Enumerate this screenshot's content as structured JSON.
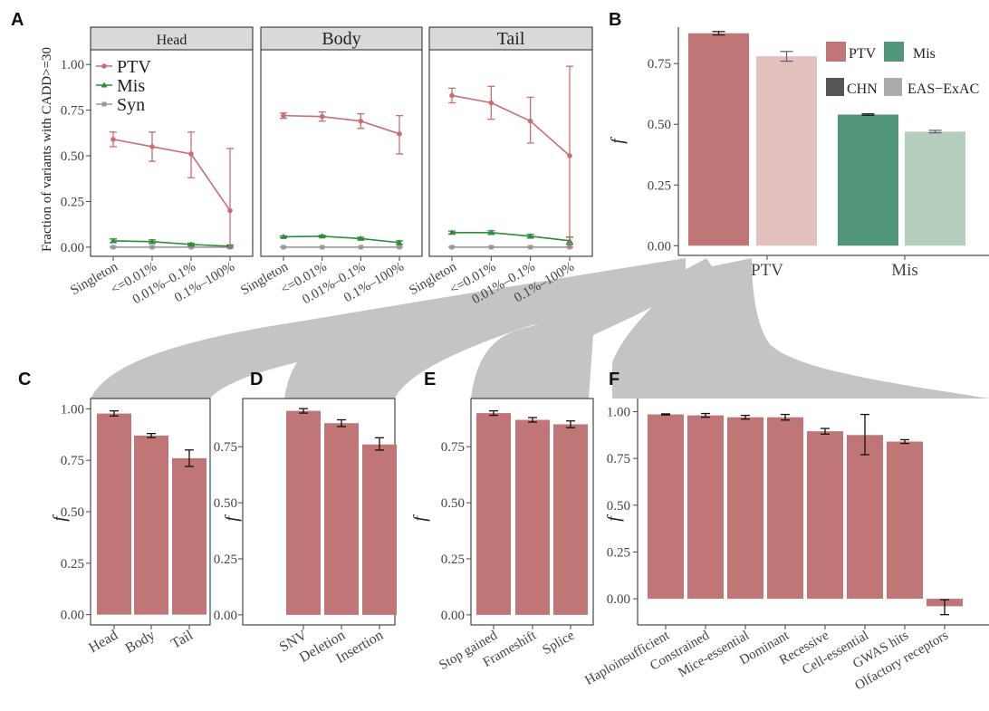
{
  "colors": {
    "ptv": "#c07677",
    "ptv_light": "#e2c0be",
    "mis": "#51967a",
    "mis_light": "#b6cebd",
    "syn": "#999999",
    "line_ptv": "#c86f73",
    "line_mis": "#2f8a3a",
    "strip": "#d9d9d9",
    "connector": "#c4c4c4",
    "legend_chn": "#555555",
    "legend_exac": "#aaaaaa"
  },
  "chart_data": [
    {
      "panel": "A",
      "type": "line",
      "ylabel": "Fraction of variants with CADD>=30",
      "ylim": [
        0,
        1.0
      ],
      "yticks": [
        "0.00",
        "0.25",
        "0.50",
        "0.75",
        "1.00"
      ],
      "categories": [
        "Singleton",
        "<=0.01%",
        "0.01%–0.1%",
        "0.1%–100%"
      ],
      "legend": [
        {
          "key": "ptv",
          "label": "PTV",
          "marker": "circle"
        },
        {
          "key": "mis",
          "label": "Mis",
          "marker": "triangle"
        },
        {
          "key": "syn",
          "label": "Syn",
          "marker": "square"
        }
      ],
      "facets": [
        {
          "name": "Head",
          "series": [
            {
              "key": "ptv",
              "values": [
                0.59,
                0.55,
                0.51,
                0.2
              ],
              "lo": [
                0.55,
                0.47,
                0.38,
                0.0
              ],
              "hi": [
                0.63,
                0.63,
                0.63,
                0.54
              ]
            },
            {
              "key": "mis",
              "values": [
                0.035,
                0.03,
                0.015,
                0.005
              ],
              "lo": [
                0.025,
                0.02,
                0.008,
                0.0
              ],
              "hi": [
                0.045,
                0.04,
                0.022,
                0.012
              ]
            },
            {
              "key": "syn",
              "values": [
                0.0,
                0.0,
                0.0,
                0.0
              ],
              "lo": [
                0.0,
                0.0,
                0.0,
                0.0
              ],
              "hi": [
                0.003,
                0.003,
                0.003,
                0.005
              ]
            }
          ]
        },
        {
          "name": "Body",
          "series": [
            {
              "key": "ptv",
              "values": [
                0.72,
                0.715,
                0.69,
                0.62
              ],
              "lo": [
                0.705,
                0.69,
                0.65,
                0.51
              ],
              "hi": [
                0.735,
                0.74,
                0.73,
                0.72
              ]
            },
            {
              "key": "mis",
              "values": [
                0.057,
                0.06,
                0.047,
                0.025
              ],
              "lo": [
                0.052,
                0.055,
                0.04,
                0.015
              ],
              "hi": [
                0.062,
                0.065,
                0.054,
                0.035
              ]
            },
            {
              "key": "syn",
              "values": [
                0.0,
                0.0,
                0.0,
                0.0
              ],
              "lo": [
                0.0,
                0.0,
                0.0,
                0.0
              ],
              "hi": [
                0.002,
                0.002,
                0.002,
                0.003
              ]
            }
          ]
        },
        {
          "name": "Tail",
          "series": [
            {
              "key": "ptv",
              "values": [
                0.83,
                0.79,
                0.69,
                0.5
              ],
              "lo": [
                0.79,
                0.7,
                0.57,
                0.0
              ],
              "hi": [
                0.87,
                0.88,
                0.82,
                0.99
              ]
            },
            {
              "key": "mis",
              "values": [
                0.08,
                0.08,
                0.06,
                0.035
              ],
              "lo": [
                0.072,
                0.07,
                0.05,
                0.015
              ],
              "hi": [
                0.088,
                0.09,
                0.07,
                0.055
              ]
            },
            {
              "key": "syn",
              "values": [
                0.0,
                0.0,
                0.0,
                0.0
              ],
              "lo": [
                0.0,
                0.0,
                0.0,
                0.0
              ],
              "hi": [
                0.003,
                0.003,
                0.003,
                0.02
              ]
            }
          ]
        }
      ]
    },
    {
      "panel": "B",
      "type": "bar",
      "ylabel": "f",
      "ylim": [
        0,
        0.9
      ],
      "yticks": [
        "0.00",
        "0.25",
        "0.50",
        "0.75"
      ],
      "categories": [
        "PTV",
        "Mis"
      ],
      "legend_variant": [
        {
          "key": "ptv",
          "label": "PTV"
        },
        {
          "key": "mis",
          "label": "Mis"
        }
      ],
      "legend_source": [
        {
          "key": "chn",
          "label": "CHN"
        },
        {
          "key": "exac",
          "label": "EAS−ExAC"
        }
      ],
      "bars": [
        {
          "category": "PTV",
          "source": "chn",
          "value": 0.875,
          "lo": 0.868,
          "hi": 0.882
        },
        {
          "category": "PTV",
          "source": "exac",
          "value": 0.78,
          "lo": 0.76,
          "hi": 0.8
        },
        {
          "category": "Mis",
          "source": "chn",
          "value": 0.54,
          "lo": 0.537,
          "hi": 0.543
        },
        {
          "category": "Mis",
          "source": "exac",
          "value": 0.47,
          "lo": 0.465,
          "hi": 0.475
        }
      ]
    },
    {
      "panel": "C",
      "type": "bar",
      "ylabel": "f",
      "ylim": [
        0,
        1.0
      ],
      "yticks": [
        "0.00",
        "0.25",
        "0.50",
        "0.75",
        "1.00"
      ],
      "categories": [
        "Head",
        "Body",
        "Tail"
      ],
      "values": [
        0.977,
        0.87,
        0.76
      ],
      "lo": [
        0.965,
        0.86,
        0.72
      ],
      "hi": [
        0.99,
        0.88,
        0.8
      ]
    },
    {
      "panel": "D",
      "type": "bar",
      "ylabel": "f",
      "ylim": [
        0,
        0.93
      ],
      "yticks": [
        "0.00",
        "0.25",
        "0.50",
        "0.75"
      ],
      "categories": [
        "SNV",
        "Deletion",
        "Insertion"
      ],
      "values": [
        0.91,
        0.855,
        0.76
      ],
      "lo": [
        0.9,
        0.84,
        0.735
      ],
      "hi": [
        0.92,
        0.87,
        0.79
      ]
    },
    {
      "panel": "E",
      "type": "bar",
      "ylabel": "f",
      "ylim": [
        0,
        0.93
      ],
      "yticks": [
        "0.00",
        "0.25",
        "0.50",
        "0.75"
      ],
      "categories": [
        "Stop gained",
        "Frameshift",
        "Splice"
      ],
      "values": [
        0.9,
        0.87,
        0.85
      ],
      "lo": [
        0.89,
        0.86,
        0.835
      ],
      "hi": [
        0.91,
        0.88,
        0.865
      ]
    },
    {
      "panel": "F",
      "type": "bar",
      "ylabel": "f",
      "ylim": [
        -0.1,
        1.05
      ],
      "yticks": [
        "0.00",
        "0.25",
        "0.50",
        "0.75",
        "1.00"
      ],
      "categories": [
        "Haploinsufficient",
        "Constrained",
        "Mice-essential",
        "Dominant",
        "Recessive",
        "Cell-essential",
        "GWAS hits",
        "Olfactory receptors"
      ],
      "values": [
        0.985,
        0.98,
        0.97,
        0.97,
        0.895,
        0.875,
        0.84,
        -0.04
      ],
      "lo": [
        0.982,
        0.97,
        0.96,
        0.955,
        0.88,
        0.77,
        0.83,
        -0.085
      ],
      "hi": [
        0.988,
        0.99,
        0.98,
        0.985,
        0.91,
        0.985,
        0.85,
        -0.005
      ]
    }
  ],
  "panel_letters": [
    "A",
    "B",
    "C",
    "D",
    "E",
    "F"
  ]
}
